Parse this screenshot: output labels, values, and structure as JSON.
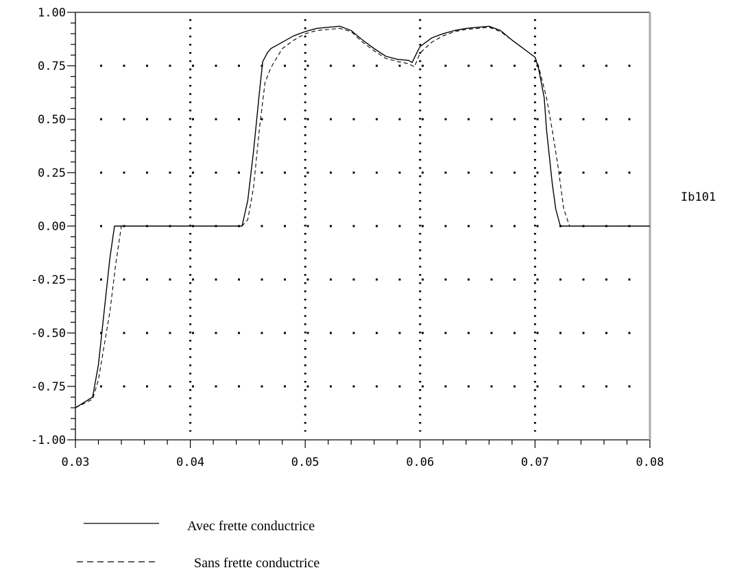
{
  "chart_data": {
    "type": "line",
    "title": "",
    "xlabel": "",
    "ylabel": "",
    "side_label": "Ib101",
    "xlim": [
      0.03,
      0.08
    ],
    "ylim": [
      -1.0,
      1.0
    ],
    "x_ticks": [
      "0.03",
      "0.04",
      "0.05",
      "0.06",
      "0.07",
      "0.08"
    ],
    "y_ticks": [
      "1.00",
      "0.75",
      "0.50",
      "0.25",
      "0.00",
      "-0.25",
      "-0.50",
      "-0.75",
      "-1.00"
    ],
    "grid": true,
    "legend_position": "bottom-left",
    "series": [
      {
        "name": "Avec frette conductrice",
        "style": "solid",
        "color": "#000000",
        "x": [
          0.03,
          0.0315,
          0.032,
          0.0325,
          0.033,
          0.0334,
          0.034,
          0.038,
          0.04,
          0.042,
          0.0445,
          0.045,
          0.0455,
          0.046,
          0.0463,
          0.0467,
          0.047,
          0.048,
          0.049,
          0.05,
          0.051,
          0.052,
          0.053,
          0.054,
          0.055,
          0.056,
          0.057,
          0.058,
          0.059,
          0.0593,
          0.0598,
          0.06,
          0.061,
          0.062,
          0.063,
          0.064,
          0.065,
          0.066,
          0.067,
          0.068,
          0.069,
          0.07,
          0.0703,
          0.0708,
          0.071,
          0.0715,
          0.0718,
          0.0722,
          0.0725,
          0.075,
          0.08
        ],
        "y": [
          -0.85,
          -0.8,
          -0.65,
          -0.4,
          -0.15,
          0.0,
          0.0,
          0.0,
          0.0,
          0.0,
          0.0,
          0.12,
          0.35,
          0.62,
          0.77,
          0.81,
          0.83,
          0.86,
          0.89,
          0.91,
          0.925,
          0.93,
          0.935,
          0.915,
          0.87,
          0.83,
          0.795,
          0.78,
          0.775,
          0.765,
          0.82,
          0.84,
          0.88,
          0.9,
          0.915,
          0.925,
          0.93,
          0.935,
          0.915,
          0.87,
          0.83,
          0.79,
          0.74,
          0.6,
          0.45,
          0.2,
          0.08,
          0.0,
          0.0,
          0.0,
          0.0
        ]
      },
      {
        "name": "Sans frette conductrice",
        "style": "dashed",
        "color": "#000000",
        "x": [
          0.03,
          0.0315,
          0.032,
          0.033,
          0.0335,
          0.034,
          0.038,
          0.04,
          0.042,
          0.0445,
          0.045,
          0.0455,
          0.046,
          0.0465,
          0.047,
          0.048,
          0.049,
          0.05,
          0.051,
          0.052,
          0.053,
          0.054,
          0.055,
          0.056,
          0.057,
          0.058,
          0.059,
          0.0595,
          0.06,
          0.061,
          0.062,
          0.063,
          0.064,
          0.065,
          0.066,
          0.067,
          0.068,
          0.069,
          0.07,
          0.0703,
          0.071,
          0.0715,
          0.072,
          0.0725,
          0.073,
          0.075,
          0.08
        ],
        "y": [
          -0.85,
          -0.81,
          -0.72,
          -0.4,
          -0.18,
          0.0,
          0.0,
          0.0,
          0.0,
          0.0,
          0.03,
          0.18,
          0.45,
          0.67,
          0.74,
          0.83,
          0.87,
          0.9,
          0.915,
          0.92,
          0.925,
          0.91,
          0.86,
          0.82,
          0.785,
          0.77,
          0.76,
          0.745,
          0.81,
          0.86,
          0.89,
          0.91,
          0.92,
          0.925,
          0.93,
          0.91,
          0.87,
          0.83,
          0.79,
          0.75,
          0.6,
          0.45,
          0.28,
          0.08,
          0.0,
          0.0,
          0.0
        ]
      }
    ]
  }
}
